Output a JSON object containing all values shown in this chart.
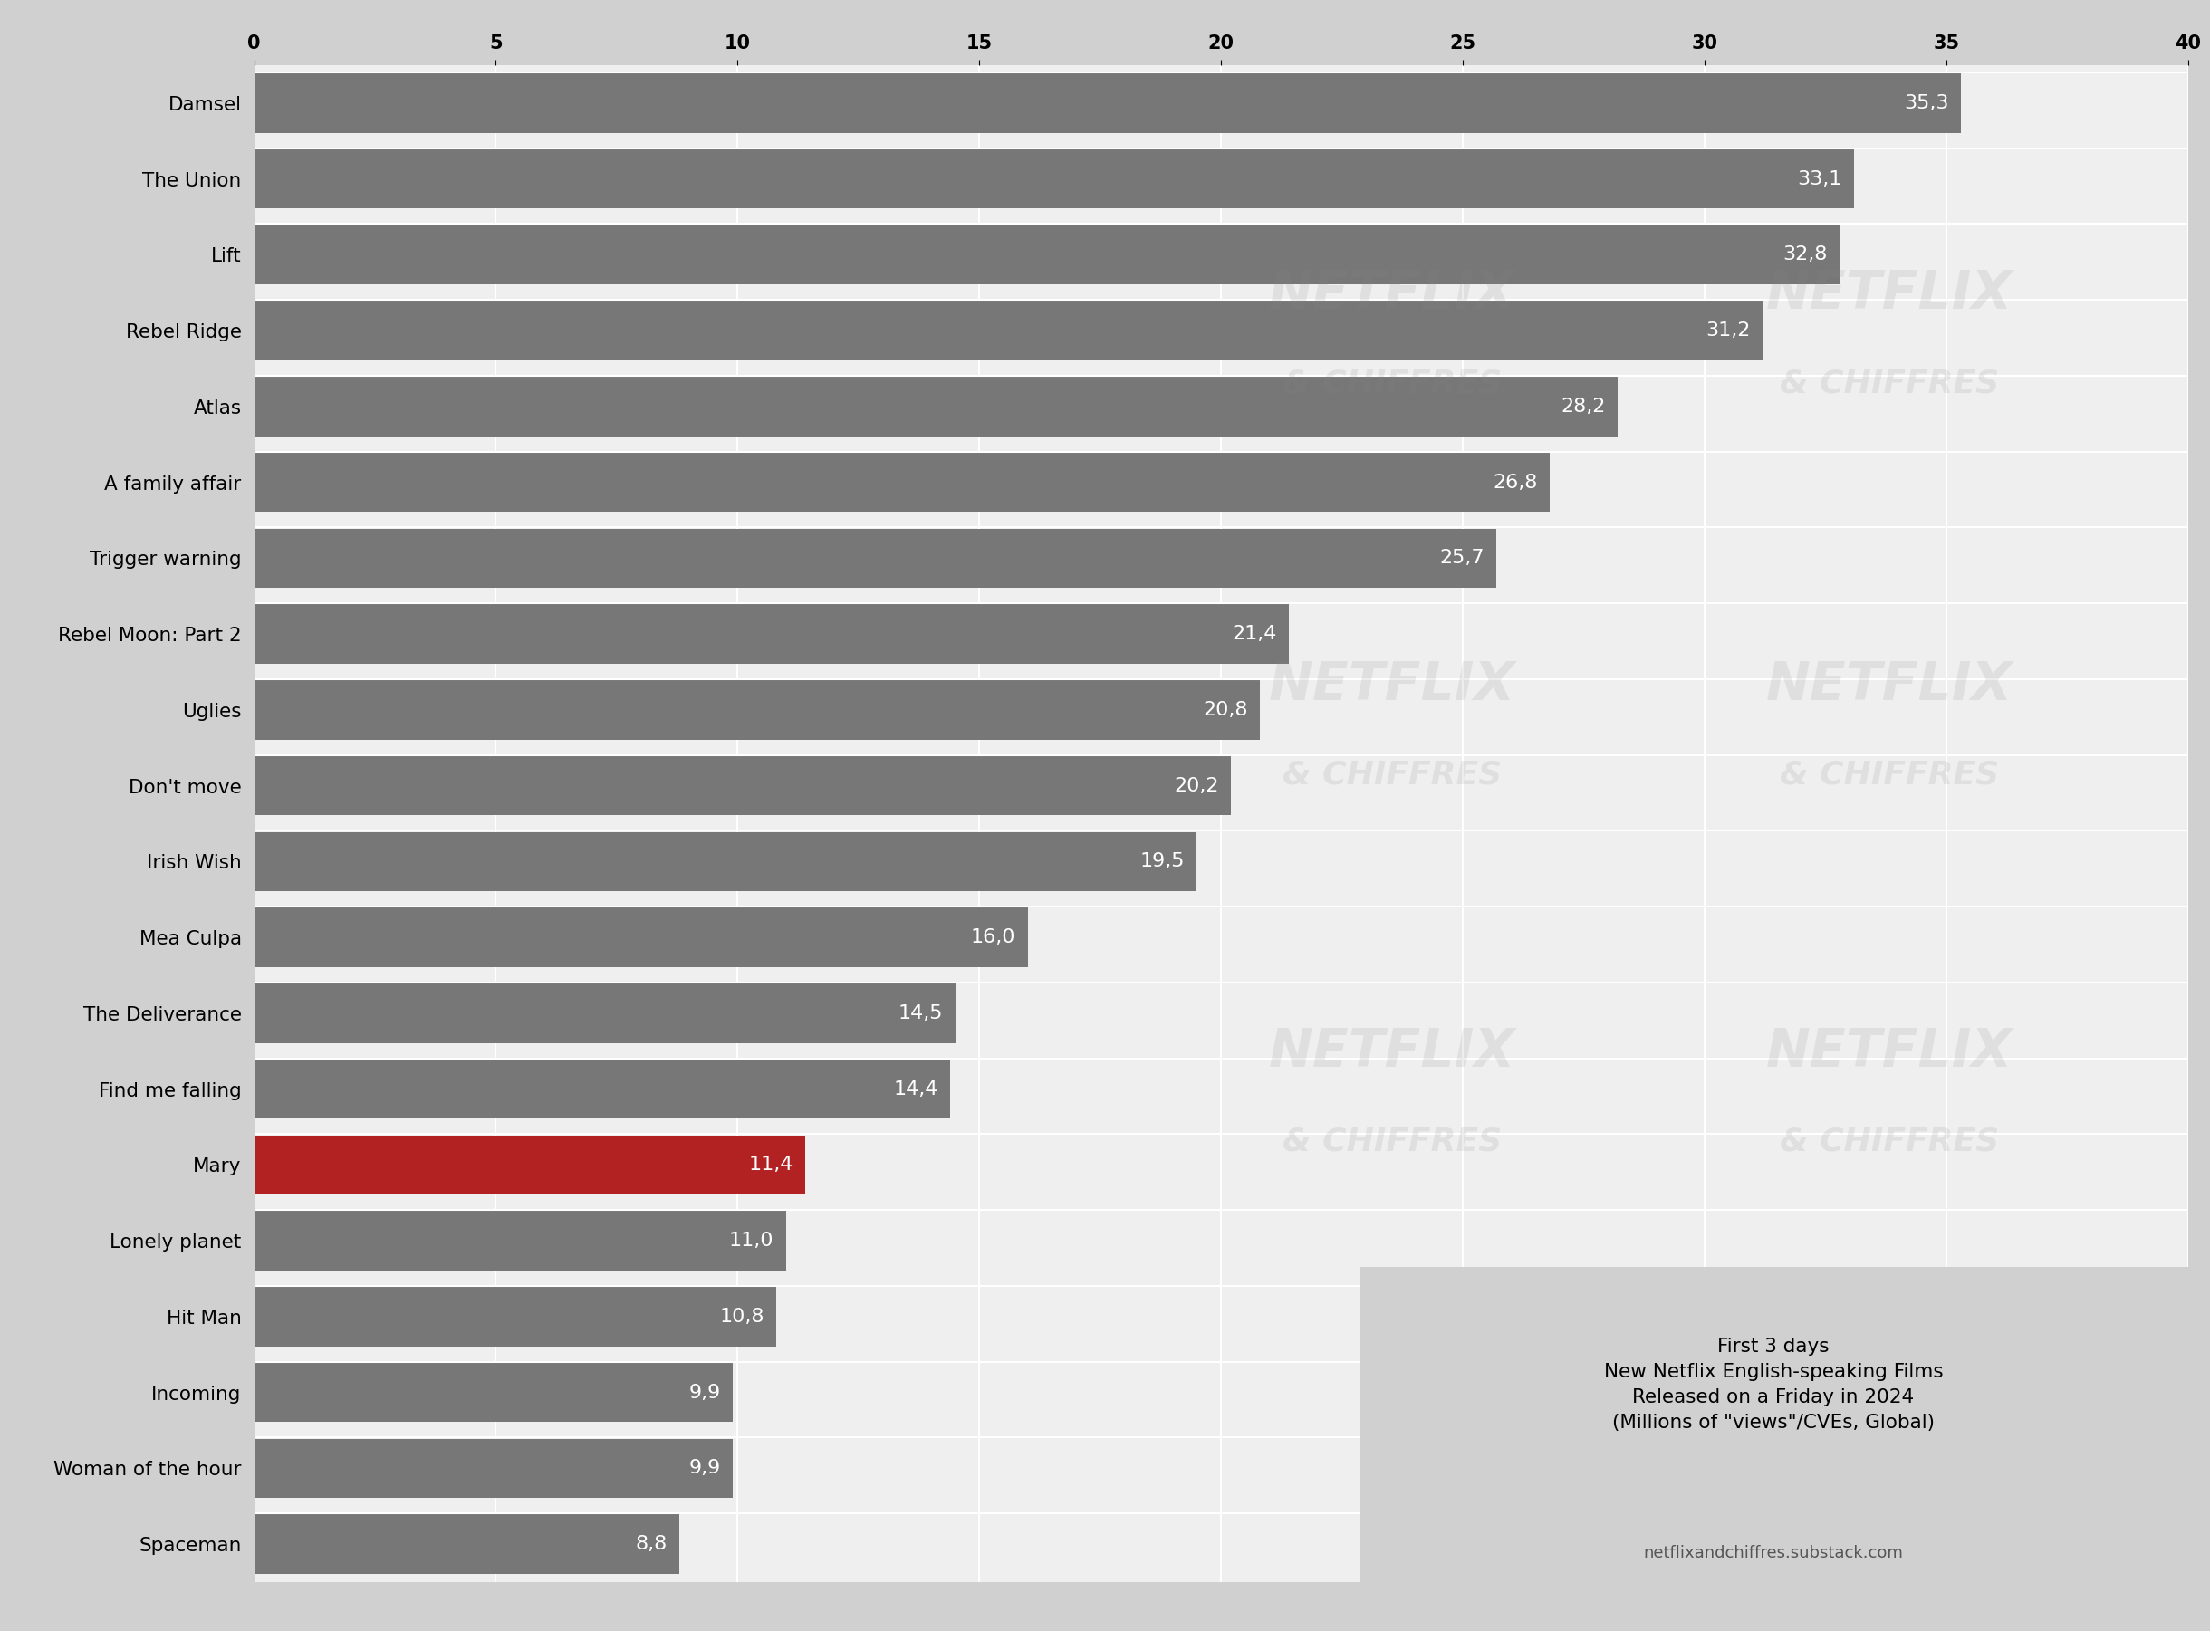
{
  "categories": [
    "Damsel",
    "The Union",
    "Lift",
    "Rebel Ridge",
    "Atlas",
    "A family affair",
    "Trigger warning",
    "Rebel Moon: Part 2",
    "Uglies",
    "Don't move",
    "Irish Wish",
    "Mea Culpa",
    "The Deliverance",
    "Find me falling",
    "Mary",
    "Lonely planet",
    "Hit Man",
    "Incoming",
    "Woman of the hour",
    "Spaceman"
  ],
  "values": [
    35.3,
    33.1,
    32.8,
    31.2,
    28.2,
    26.8,
    25.7,
    21.4,
    20.8,
    20.2,
    19.5,
    16.0,
    14.5,
    14.4,
    11.4,
    11.0,
    10.8,
    9.9,
    9.9,
    8.8
  ],
  "labels": [
    "35,3",
    "33,1",
    "32,8",
    "31,2",
    "28,2",
    "26,8",
    "25,7",
    "21,4",
    "20,8",
    "20,2",
    "19,5",
    "16,0",
    "14,5",
    "14,4",
    "11,4",
    "11,0",
    "10,8",
    "9,9",
    "9,9",
    "8,8"
  ],
  "bar_color_default": "#777777",
  "bar_color_highlight": "#B22222",
  "highlight_index": 14,
  "outer_background": "#D0D0D0",
  "inner_background": "#EFEFEF",
  "xlim": [
    0,
    40
  ],
  "xticks": [
    0,
    5,
    10,
    15,
    20,
    25,
    30,
    35,
    40
  ],
  "annotation_box_facecolor": "#D0D0D0",
  "annotation_text": "First 3 days\nNew Netflix English-speaking Films\nReleased on a Friday in 2024\n(Millions of \"views\"/CVEs, Global)",
  "annotation_source": "netflixandchiffres.substack.com",
  "watermarks": [
    {
      "text": "NETFLIX",
      "col": 0.63,
      "row": 0.82,
      "fs": 42,
      "alpha": 0.15
    },
    {
      "text": "& CHIFFRES",
      "col": 0.63,
      "row": 0.765,
      "fs": 26,
      "alpha": 0.15
    },
    {
      "text": "NETFLIX",
      "col": 0.855,
      "row": 0.82,
      "fs": 42,
      "alpha": 0.15
    },
    {
      "text": "& CHIFFRES",
      "col": 0.855,
      "row": 0.765,
      "fs": 26,
      "alpha": 0.15
    },
    {
      "text": "NETFLIX",
      "col": 0.63,
      "row": 0.58,
      "fs": 42,
      "alpha": 0.15
    },
    {
      "text": "& CHIFFRES",
      "col": 0.63,
      "row": 0.525,
      "fs": 26,
      "alpha": 0.15
    },
    {
      "text": "NETFLIX",
      "col": 0.855,
      "row": 0.58,
      "fs": 42,
      "alpha": 0.15
    },
    {
      "text": "& CHIFFRES",
      "col": 0.855,
      "row": 0.525,
      "fs": 26,
      "alpha": 0.15
    },
    {
      "text": "NETFLIX",
      "col": 0.63,
      "row": 0.355,
      "fs": 42,
      "alpha": 0.15
    },
    {
      "text": "& CHIFFRES",
      "col": 0.63,
      "row": 0.3,
      "fs": 26,
      "alpha": 0.15
    },
    {
      "text": "NETFLIX",
      "col": 0.855,
      "row": 0.355,
      "fs": 42,
      "alpha": 0.15
    },
    {
      "text": "& CHIFFRES",
      "col": 0.855,
      "row": 0.3,
      "fs": 26,
      "alpha": 0.15
    }
  ]
}
